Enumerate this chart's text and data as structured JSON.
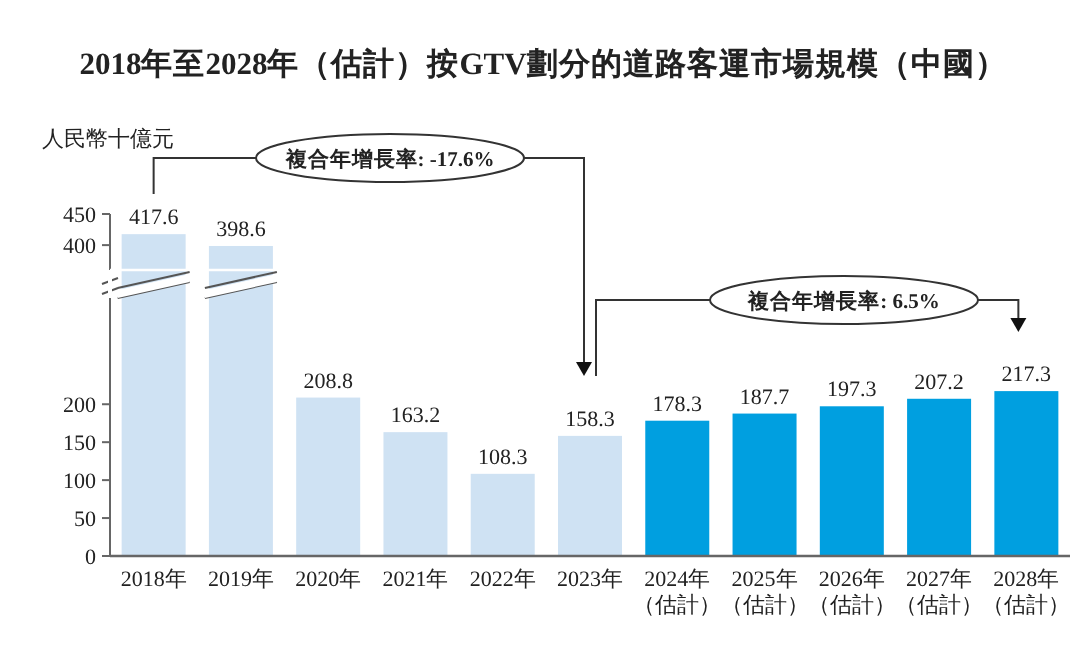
{
  "chart_data": [
    {
      "type": "bar",
      "title": "2018年至2028年（估計）按GTV劃分的道路客運市場規模（中國）",
      "ylabel": "人民幣十億元",
      "categories": [
        null,
        null,
        null,
        null,
        null,
        null,
        null,
        null,
        null,
        null,
        null
      ],
      "values": [
        417.6,
        398.6,
        null,
        null,
        null,
        null,
        null,
        null,
        null,
        null,
        null
      ],
      "colors": [
        "#cfe2f3",
        "#cfe2f3",
        null,
        null,
        null,
        null,
        null,
        null,
        null,
        null,
        null
      ],
      "ylim": [
        360,
        450
      ],
      "yticks": [
        400,
        450
      ],
      "data_labels": true,
      "tick_labels": "y",
      "annotations": [
        "複合年增長率: -17.6%",
        "複合年增長率: 6.5%"
      ]
    },
    {
      "type": "bar",
      "categories": [
        "2018年",
        "2019年",
        "2020年",
        "2021年",
        "2022年",
        "2023年",
        "2024年（估計）",
        "2025年（估計）",
        "2026年（估計）",
        "2027年（估計）",
        "2028年（估計）"
      ],
      "values": [
        null,
        null,
        208.8,
        163.2,
        108.3,
        158.3,
        178.3,
        187.7,
        197.3,
        207.2,
        217.3
      ],
      "value_labels": [
        null,
        null,
        "208.8",
        "163.2",
        "108.3",
        "158.3",
        "178.3",
        "187.7",
        "197.3",
        "207.2",
        "217.3"
      ],
      "colors": [
        null,
        null,
        "#cfe2f3",
        "#cfe2f3",
        "#cfe2f3",
        "#cfe2f3",
        "#009fe0",
        "#009fe0",
        "#009fe0",
        "#009fe0",
        "#009fe0"
      ],
      "ylim": [
        0,
        340
      ],
      "yticks": [
        0,
        50,
        100,
        150,
        200
      ]
    }
  ]
}
